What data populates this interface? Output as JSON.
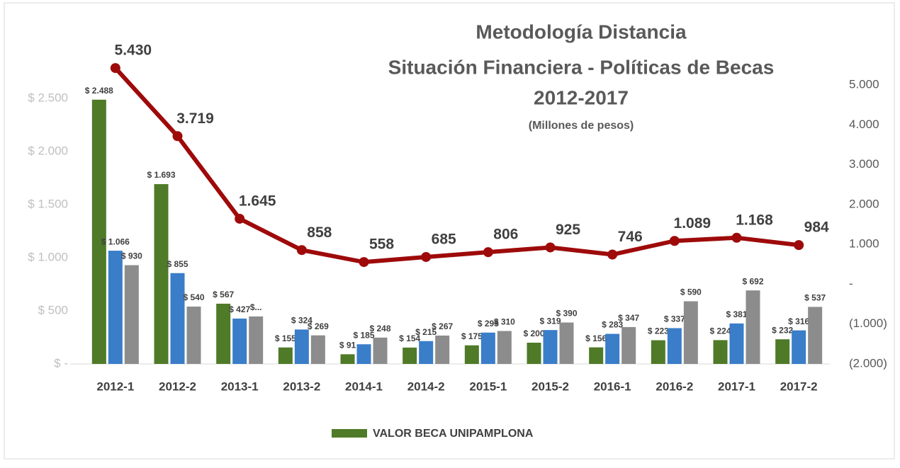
{
  "chart_data": {
    "type": "bar",
    "title": [
      "Metodología Distancia",
      "Situación Financiera - Políticas de Becas",
      "2012-2017"
    ],
    "subtitle": "(Millones de pesos)",
    "categories": [
      "2012-1",
      "2012-2",
      "2013-1",
      "2013-2",
      "2014-1",
      "2014-2",
      "2015-1",
      "2015-2",
      "2016-1",
      "2016-2",
      "2017-1",
      "2017-2"
    ],
    "series": [
      {
        "name": "VALOR BECA UNIPAMPLONA",
        "color": "#4f7a28",
        "type": "bar",
        "values": [
          2488,
          1693,
          567,
          155,
          91,
          154,
          175,
          200,
          156,
          223,
          224,
          232
        ],
        "value_labels": [
          "$ 2.488",
          "$ 1.693",
          "$ 567",
          "$ 155",
          "$ 91",
          "$ 154",
          "$ 175",
          "$ 200",
          "$ 156",
          "$ 223",
          "$ 224",
          "$ 232"
        ]
      },
      {
        "color": "#3a7dc9",
        "type": "bar",
        "values": [
          1066,
          855,
          427,
          324,
          185,
          215,
          295,
          319,
          283,
          337,
          381,
          316
        ],
        "value_labels": [
          "$ 1.066",
          "$ 855",
          "$ 427",
          "$ 324",
          "$ 185",
          "$ 215",
          "$ 295",
          "$ 319",
          "$ 283",
          "$ 337",
          "$ 381",
          "$ 316"
        ]
      },
      {
        "color": "#8c8c8c",
        "type": "bar",
        "values": [
          930,
          540,
          447,
          269,
          248,
          267,
          310,
          390,
          347,
          590,
          692,
          537
        ],
        "value_labels": [
          "$ 930",
          "$ 540",
          "$...",
          "$ 269",
          "$ 248",
          "$ 267",
          "$ 310",
          "$ 390",
          "$ 347",
          "$ 590",
          "$ 692",
          "$ 537"
        ]
      },
      {
        "color": "#9e0a0a",
        "type": "line",
        "axis": "y2",
        "values": [
          5430,
          3719,
          1645,
          858,
          558,
          685,
          806,
          925,
          746,
          1089,
          1168,
          984
        ],
        "value_labels": [
          "5.430",
          "3.719",
          "1.645",
          "858",
          "558",
          "685",
          "806",
          "925",
          "746",
          "1.089",
          "1.168",
          "984"
        ]
      }
    ],
    "ylim": [
      0,
      3000
    ],
    "yticks": [
      {
        "value": 0,
        "label": "$ -"
      },
      {
        "value": 500,
        "label": "$ 500"
      },
      {
        "value": 1000,
        "label": "$ 1.000"
      },
      {
        "value": 1500,
        "label": "$ 1.500"
      },
      {
        "value": 2000,
        "label": "$ 2.000"
      },
      {
        "value": 2500,
        "label": "$ 2.500"
      }
    ],
    "y2lim": [
      -2000,
      6000
    ],
    "y2ticks": [
      {
        "value": -2000,
        "label": "(2.000)"
      },
      {
        "value": -1000,
        "label": "(1.000)"
      },
      {
        "value": 0,
        "label": "-"
      },
      {
        "value": 1000,
        "label": "1.000"
      },
      {
        "value": 2000,
        "label": "2.000"
      },
      {
        "value": 3000,
        "label": "3.000"
      },
      {
        "value": 4000,
        "label": "4.000"
      },
      {
        "value": 5000,
        "label": "5.000"
      }
    ],
    "legend": "bottom"
  }
}
